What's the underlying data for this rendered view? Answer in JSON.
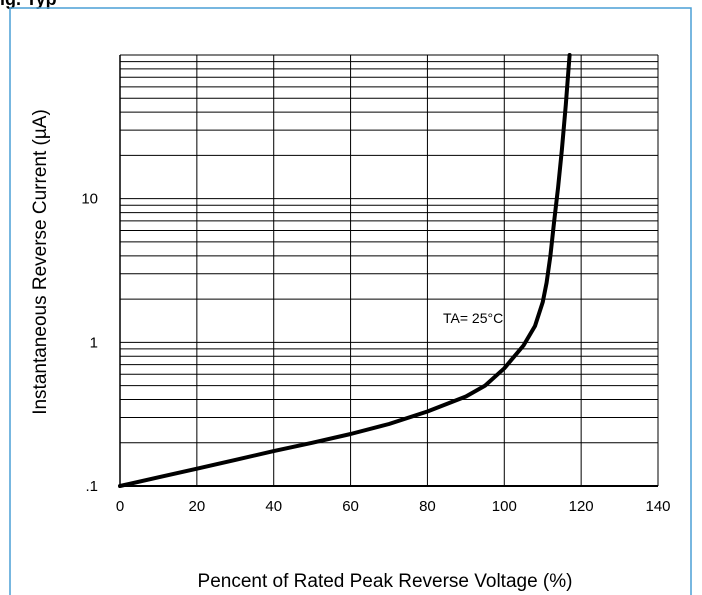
{
  "header": {
    "cropped_title": "ig. Typ"
  },
  "chart_data": {
    "type": "line",
    "title": "",
    "xlabel": "Pencent of Rated Peak Reverse Voltage (%)",
    "ylabel": "Instantaneous Reverse Current (µA)",
    "xlim": [
      0,
      140
    ],
    "ylim": [
      0.1,
      100
    ],
    "yscale": "log",
    "grid": true,
    "x_ticks": [
      0,
      20,
      40,
      60,
      80,
      100,
      120,
      140
    ],
    "x_tick_labels": [
      "0",
      "20",
      "40",
      "60",
      "80",
      "100",
      "120",
      "140"
    ],
    "y_ticks": [
      0.1,
      1,
      10
    ],
    "y_tick_labels": [
      ".1",
      "1",
      "10"
    ],
    "series": [
      {
        "name": "TA= 25°C",
        "x": [
          0,
          10,
          20,
          30,
          40,
          50,
          60,
          70,
          80,
          90,
          95,
          100,
          105,
          108,
          110,
          111,
          112,
          113,
          114,
          115,
          116,
          117
        ],
        "y": [
          0.1,
          0.115,
          0.132,
          0.152,
          0.175,
          0.2,
          0.23,
          0.27,
          0.33,
          0.42,
          0.5,
          0.66,
          0.95,
          1.3,
          1.9,
          2.6,
          4,
          7,
          12,
          22,
          45,
          100
        ]
      }
    ],
    "annotations": [
      {
        "text": "TA= 25°C",
        "x": 103,
        "y": 1.4
      }
    ],
    "colors": {
      "curve": "#000000",
      "grid": "#000000",
      "frame": "#4a9fd6"
    }
  }
}
